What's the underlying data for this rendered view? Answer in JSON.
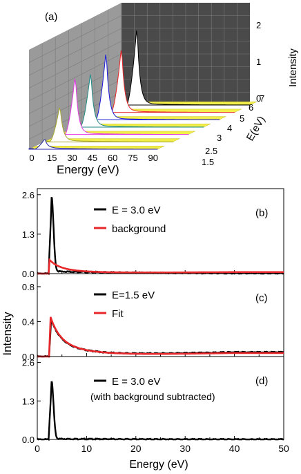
{
  "chart_data": [
    {
      "panel": "(a)",
      "type": "line",
      "xlabel": "Energy (eV)",
      "ylabel": "Intensity",
      "zlabel": "E(eV)",
      "xticks": [
        "0",
        "15",
        "30",
        "45",
        "60",
        "75",
        "90"
      ],
      "zticks": [
        "1.5",
        "2.5",
        "3",
        "4",
        "5",
        "6",
        "7"
      ],
      "yticks": [
        "0",
        "1",
        "2"
      ],
      "xlim": [
        0,
        100
      ],
      "ylim": [
        0,
        2.6
      ],
      "series": [
        {
          "E": 7,
          "color": "#000000",
          "peak_x": 12,
          "peak": 2.4
        },
        {
          "E": 6,
          "color": "#e8272a",
          "peak_x": 12,
          "peak": 2.0
        },
        {
          "E": 5,
          "color": "#1a1adb",
          "peak_x": 12,
          "peak": 2.1
        },
        {
          "E": 4,
          "color": "#1f8a84",
          "peak_x": 12,
          "peak": 1.7
        },
        {
          "E": 3,
          "color": "#e23be3",
          "peak_x": 12,
          "peak": 1.8
        },
        {
          "E": 2.5,
          "color": "#a8a82c",
          "peak_x": 12,
          "peak": 1.1
        },
        {
          "E": 1.5,
          "color": "#2a2aa8",
          "peak_x": 12,
          "peak": 0.3
        }
      ]
    },
    {
      "panel": "(b)",
      "type": "line",
      "xlim": [
        0,
        50
      ],
      "ylim": [
        0,
        2.8
      ],
      "yticks": [
        "0.0",
        "1.3",
        "2.6"
      ],
      "yticks_values": [
        0,
        1.3,
        2.6
      ],
      "legend": [
        "E = 3.0 eV",
        "background"
      ],
      "legend_position": "top-center",
      "series": [
        {
          "name": "E = 3.0 eV",
          "color": "#000000",
          "onset": 2.3,
          "peak_x": 2.9,
          "peak": 2.45,
          "decay_to": 4.0,
          "tail": 0.08
        },
        {
          "name": "background",
          "color": "#e8272a",
          "onset": 2.3,
          "peak_x": 2.5,
          "peak": 0.45,
          "tail": 0.05
        }
      ]
    },
    {
      "panel": "(c)",
      "type": "line",
      "xlim": [
        0,
        50
      ],
      "ylim": [
        0,
        0.95
      ],
      "yticks": [
        "0.0",
        "0.4",
        "0.8"
      ],
      "yticks_values": [
        0,
        0.4,
        0.8
      ],
      "ylabel": "Intensity",
      "legend": [
        "E=1.5 eV",
        "Fit"
      ],
      "legend_position": "top-center",
      "series": [
        {
          "name": "E=1.5 eV",
          "color": "#000000",
          "onset": 2.4,
          "peak_x": 2.8,
          "peak": 0.42,
          "tail": 0.05
        },
        {
          "name": "Fit",
          "color": "#e8272a",
          "onset": 2.4,
          "peak_x": 2.7,
          "peak": 0.45,
          "tail": 0.04
        }
      ]
    },
    {
      "panel": "(d)",
      "type": "line",
      "xlim": [
        0,
        50
      ],
      "ylim": [
        0,
        2.8
      ],
      "yticks": [
        "0.0",
        "1.3",
        "2.6"
      ],
      "yticks_values": [
        0,
        1.3,
        2.6
      ],
      "xticks": [
        "0",
        "10",
        "20",
        "30",
        "40",
        "50"
      ],
      "xticks_values": [
        0,
        10,
        20,
        30,
        40,
        50
      ],
      "xlabel": "Energy (eV)",
      "legend": [
        "E = 3.0 eV"
      ],
      "legend_note": "(with background subtracted)",
      "series": [
        {
          "name": "E = 3.0 eV",
          "color": "#000000",
          "onset": 2.3,
          "peak_x": 2.9,
          "peak": 1.95,
          "decay_to": 3.9,
          "tail": 0.02
        }
      ]
    }
  ]
}
